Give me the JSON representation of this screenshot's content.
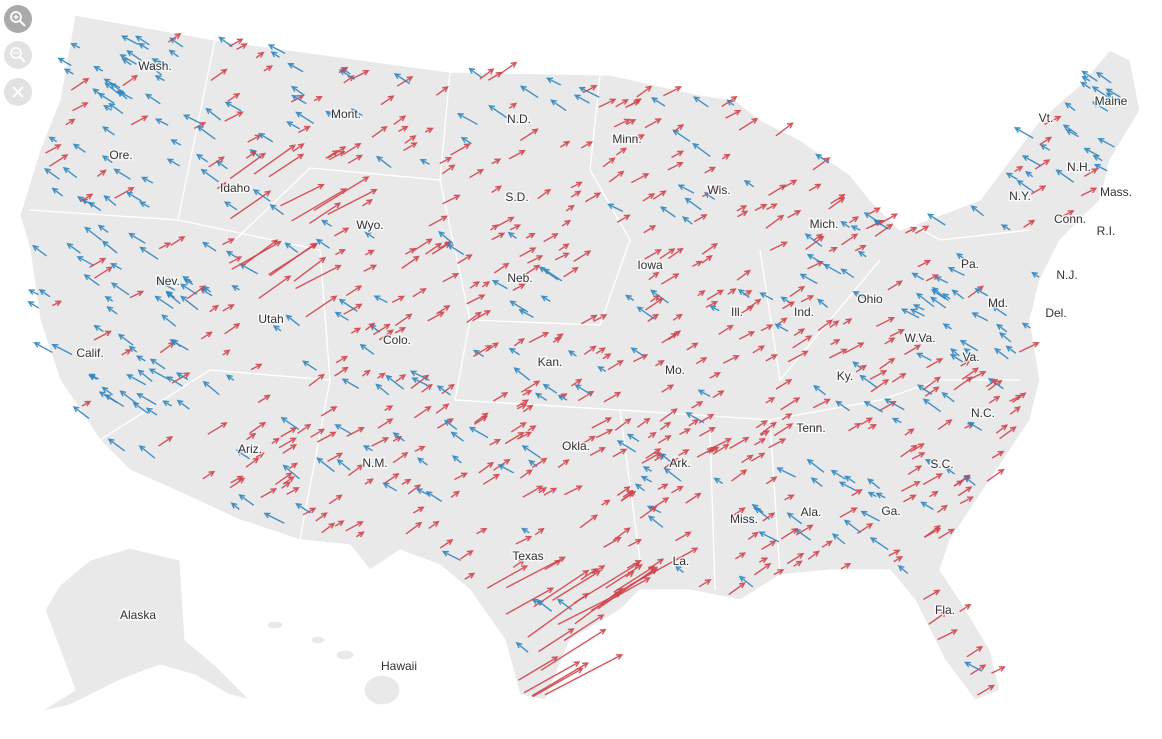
{
  "map_labels": [
    "Wash.",
    "Mont.",
    "N.D.",
    "Minn.",
    "Ore.",
    "Idaho",
    "Wis.",
    "Maine",
    "Vt.",
    "N.H.",
    "Mass.",
    "N.Y.",
    "Conn.",
    "R.I.",
    "S.D.",
    "Wyo.",
    "Mich.",
    "N.J.",
    "Iowa",
    "Pa.",
    "Nev.",
    "Neb.",
    "Ohio",
    "Md.",
    "Del.",
    "Utah",
    "Ill.",
    "Ind.",
    "Colo.",
    "W.Va.",
    "Calif.",
    "Kan.",
    "Va.",
    "Mo.",
    "Ky.",
    "N.C.",
    "Tenn.",
    "Okla.",
    "Ariz.",
    "N.M.",
    "Ark.",
    "S.C.",
    "Ga.",
    "Ala.",
    "Miss.",
    "Texas",
    "La.",
    "Fla.",
    "Alaska",
    "Hawaii"
  ]
}
